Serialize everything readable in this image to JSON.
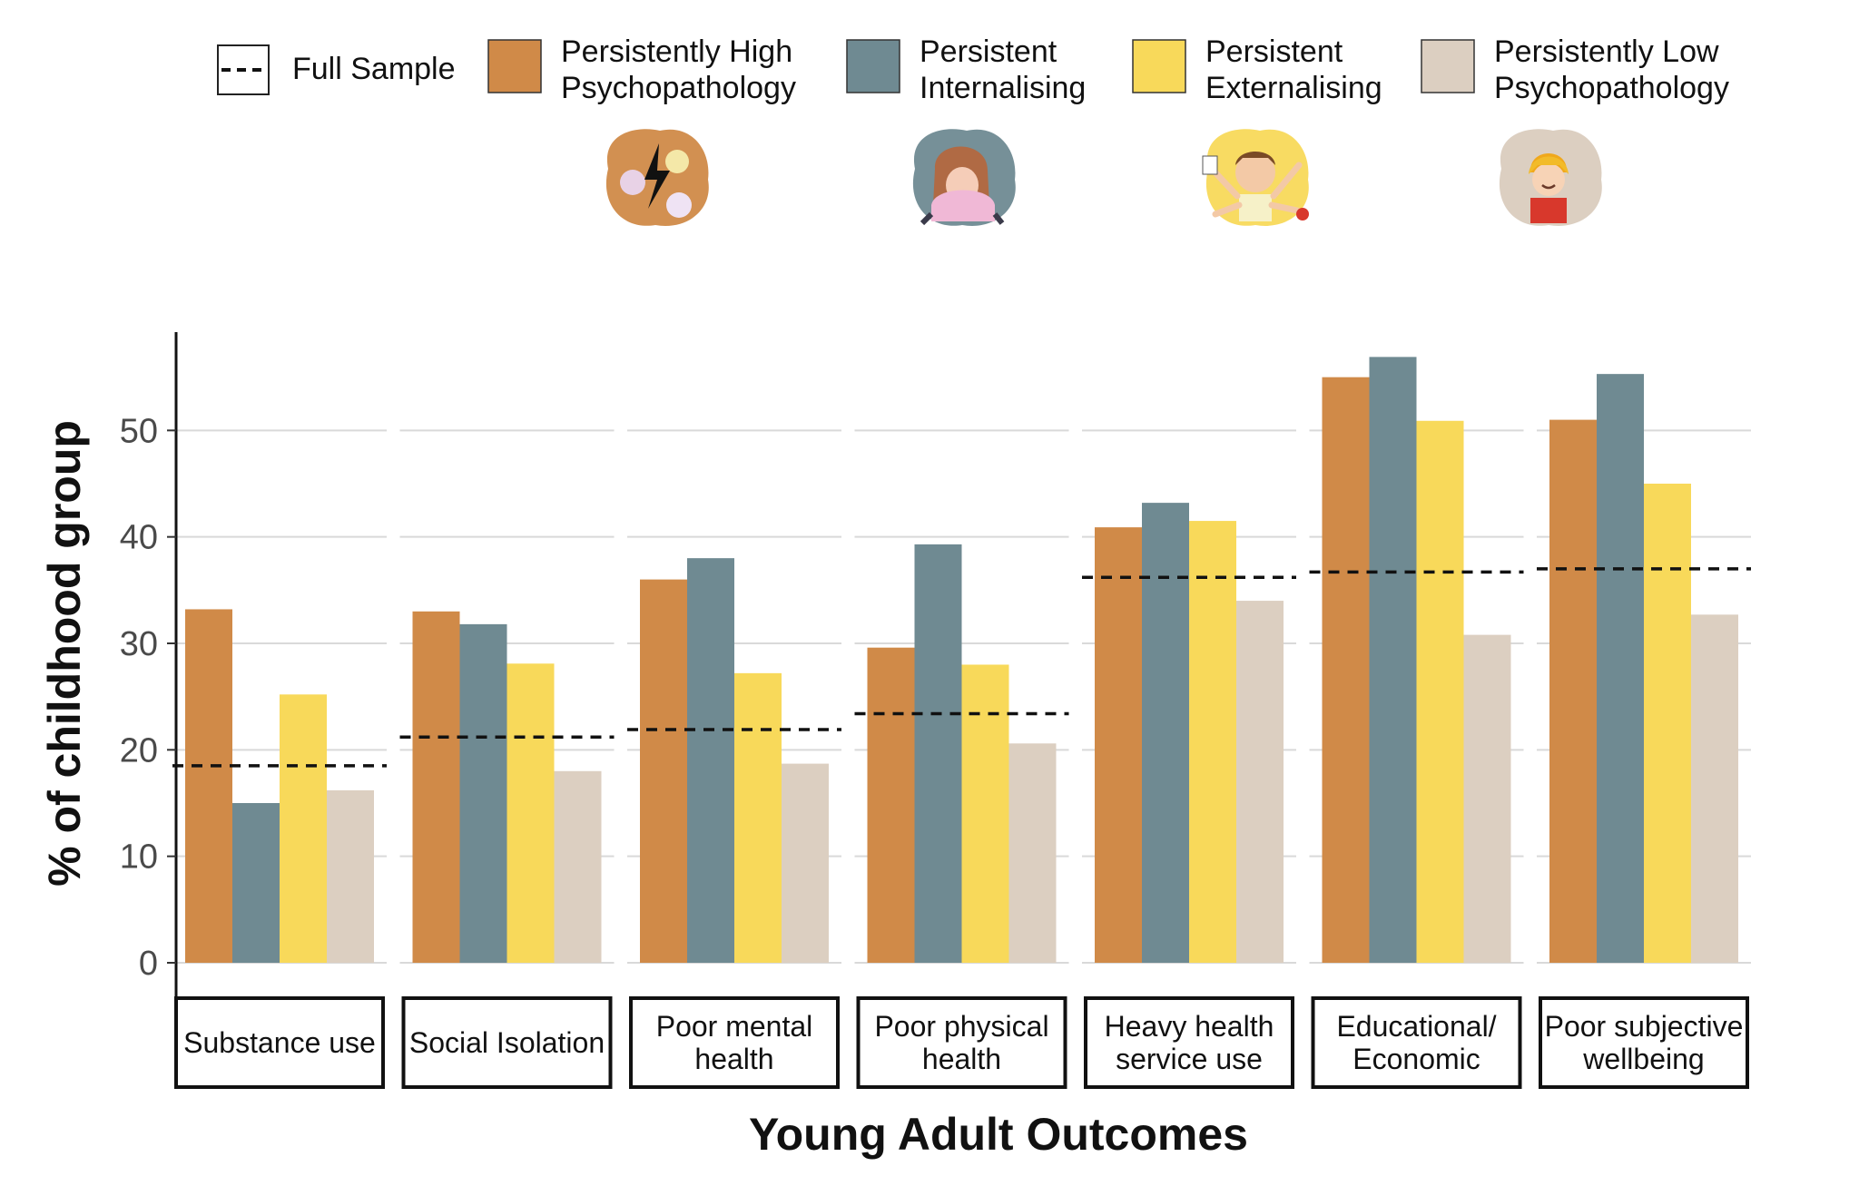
{
  "chart_data": {
    "type": "bar",
    "title": "",
    "xlabel": "Young Adult Outcomes",
    "ylabel": "% of childhood group",
    "ylim": [
      0,
      60
    ],
    "yticks": [
      0,
      10,
      20,
      30,
      40,
      50
    ],
    "grid": true,
    "legend_position": "top",
    "reference_line": {
      "name": "Full Sample",
      "style": "dashed"
    },
    "categories": [
      [
        "Substance use"
      ],
      [
        "Social Isolation"
      ],
      [
        "Poor mental",
        "health"
      ],
      [
        "Poor physical",
        "health"
      ],
      [
        "Heavy health",
        "service use"
      ],
      [
        "Educational/",
        "Economic"
      ],
      [
        "Poor subjective",
        "wellbeing"
      ]
    ],
    "full_sample": [
      18.5,
      21.2,
      21.9,
      23.4,
      36.2,
      36.7,
      37.0
    ],
    "series": [
      {
        "name": [
          "Persistently High",
          "Psychopathology"
        ],
        "color": "#d08a48",
        "icon": "conflict-collage-icon",
        "values": [
          33.2,
          33.0,
          36.0,
          29.6,
          40.9,
          55.0,
          51.0
        ]
      },
      {
        "name": [
          "Persistent",
          "Internalising"
        ],
        "color": "#6f8a92",
        "icon": "sad-child-icon",
        "values": [
          15.0,
          31.8,
          38.0,
          39.3,
          43.2,
          56.9,
          55.3
        ]
      },
      {
        "name": [
          "Persistent",
          "Externalising"
        ],
        "color": "#f8d95a",
        "icon": "hyperactive-child-icon",
        "values": [
          25.2,
          28.1,
          27.2,
          28.0,
          41.5,
          50.9,
          45.0
        ]
      },
      {
        "name": [
          "Persistently Low",
          "Psychopathology"
        ],
        "color": "#dccfc1",
        "icon": "happy-child-icon",
        "values": [
          16.2,
          18.0,
          18.7,
          20.6,
          34.0,
          30.8,
          32.7
        ]
      }
    ]
  }
}
